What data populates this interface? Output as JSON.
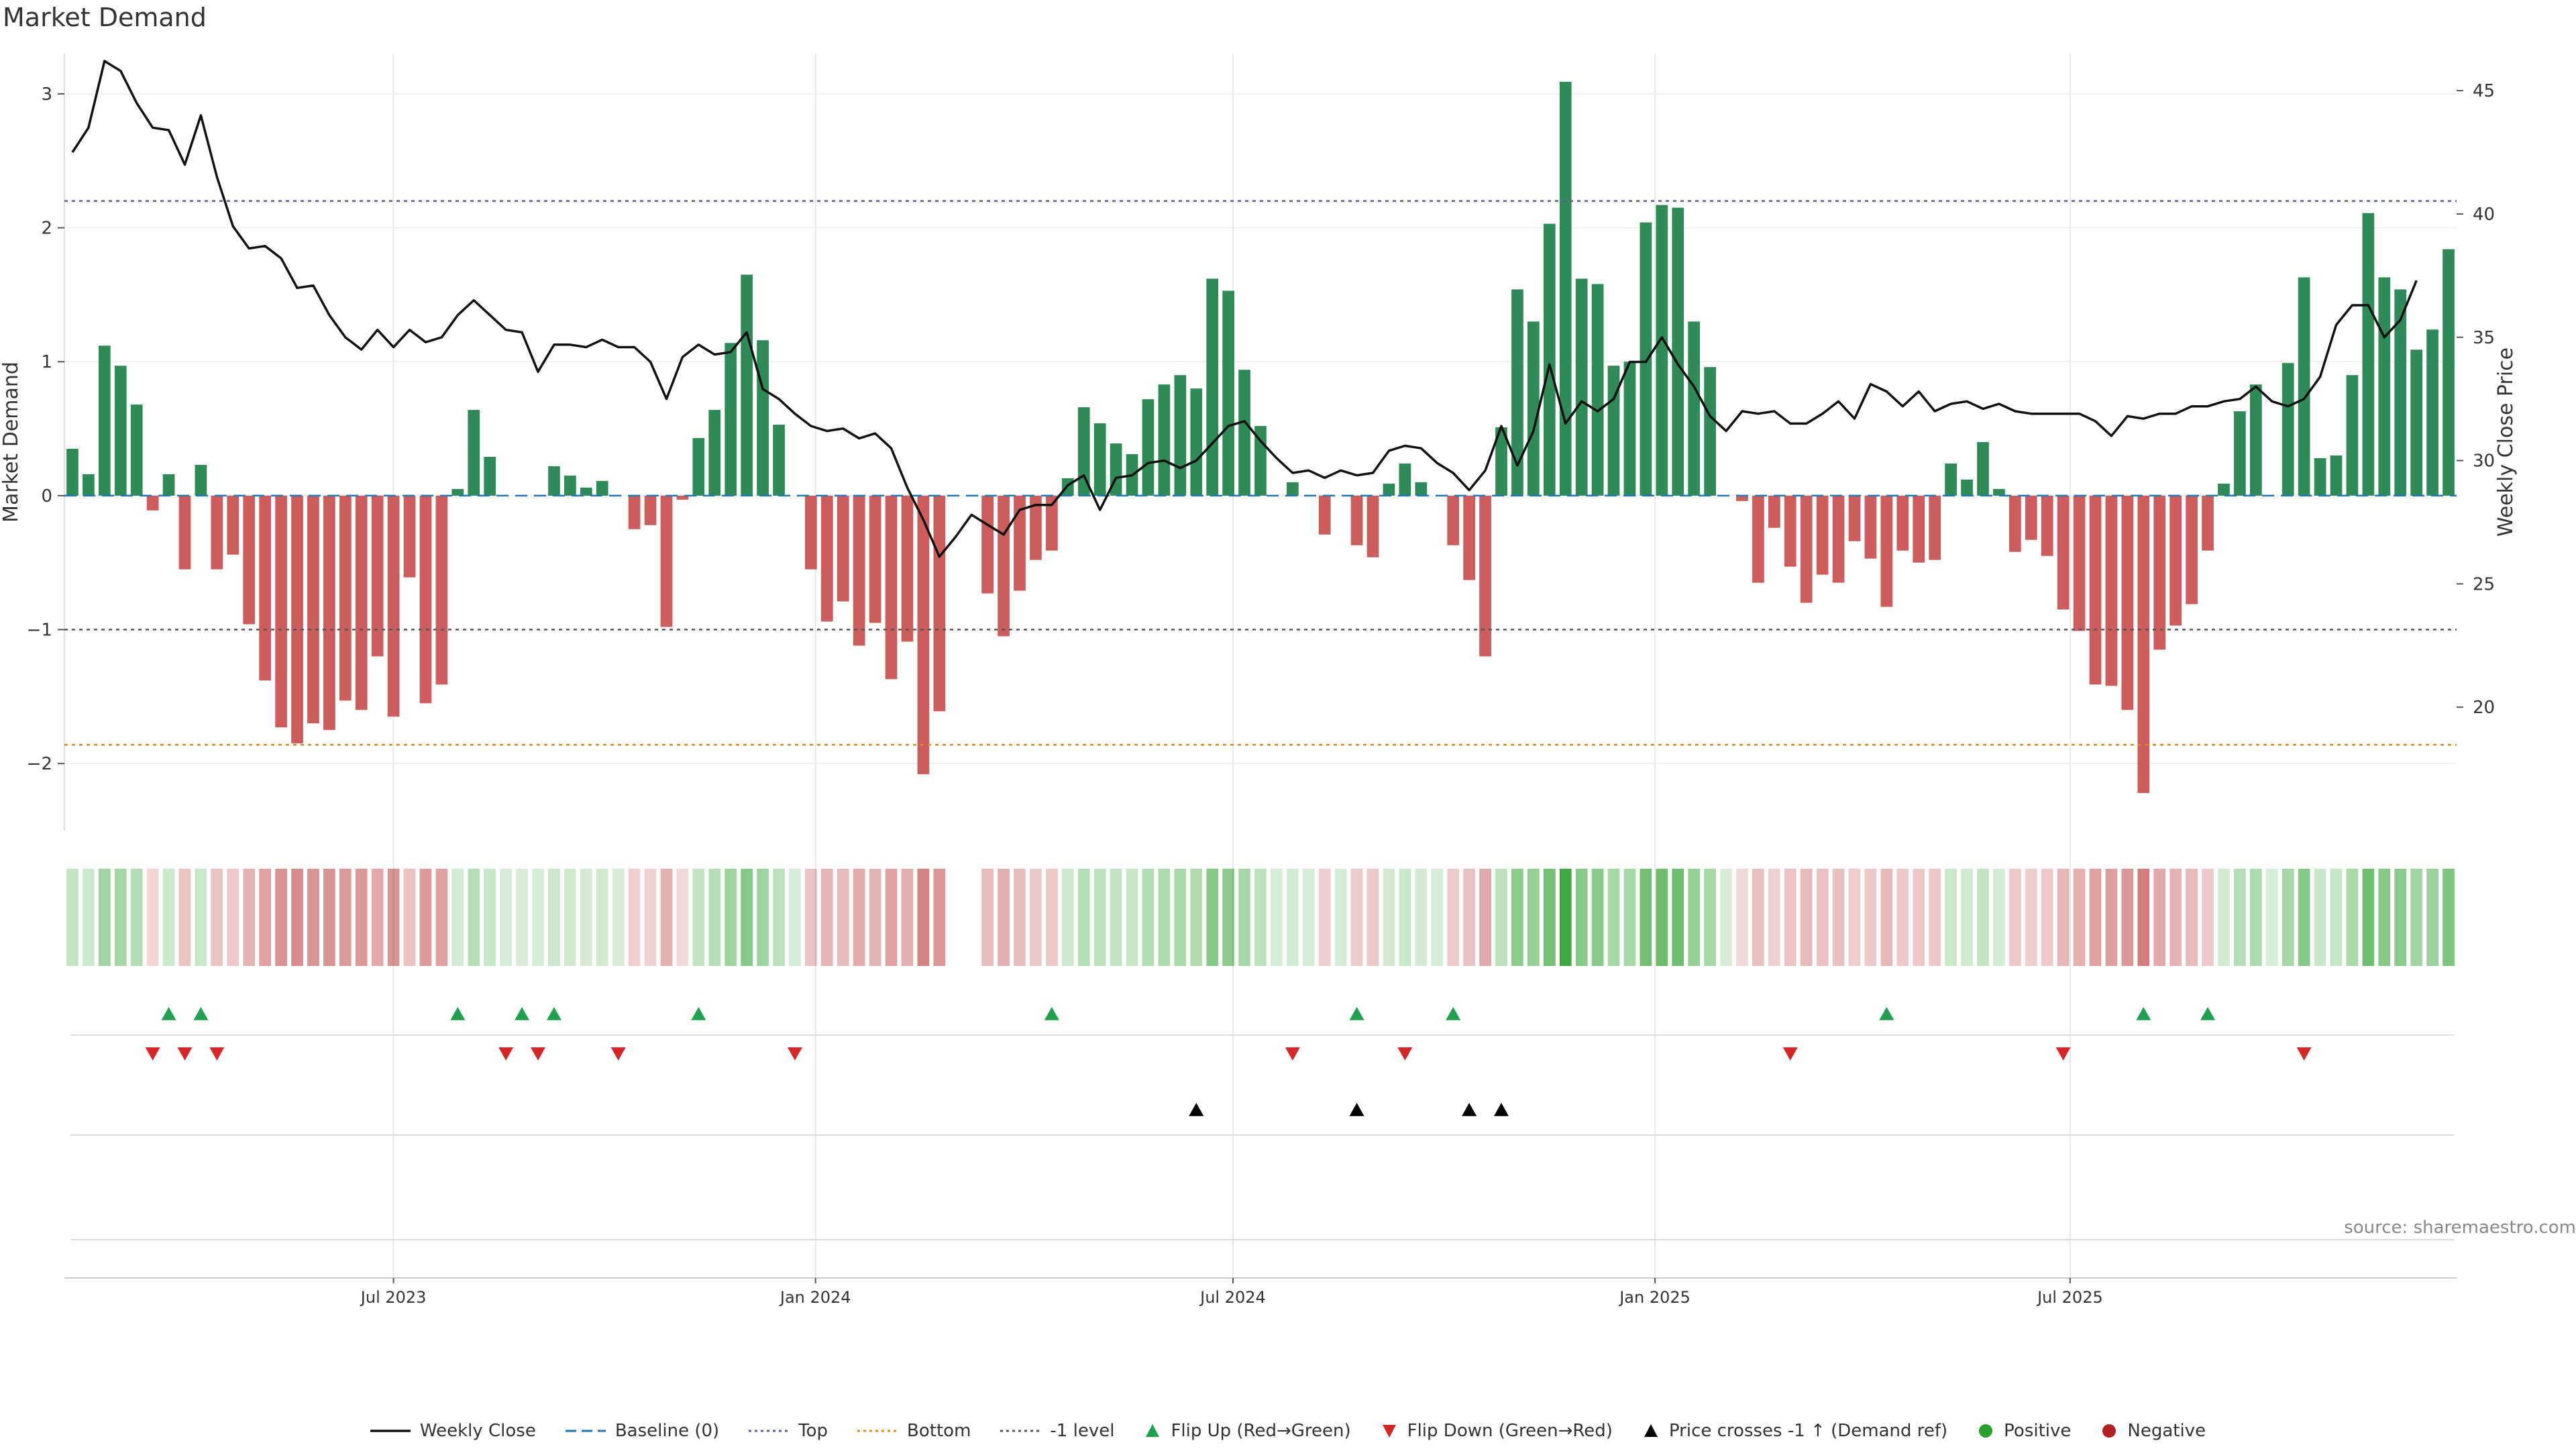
{
  "title": "Market Demand",
  "source": "source: sharemaestro.com",
  "chart_data": {
    "type": "bar",
    "title": "Market Demand",
    "ylabel": "Market Demand",
    "y2label": "Weekly Close Price",
    "ylim": [
      -2.5,
      3.3
    ],
    "y2lim": [
      15,
      46.5
    ],
    "yticks": [
      -2,
      -1,
      0,
      1,
      2,
      3
    ],
    "y2ticks": [
      20,
      25,
      30,
      35,
      40,
      45
    ],
    "reference_lines": {
      "top": 2.2,
      "bottom": -1.86,
      "minus_one": -1,
      "baseline": 0
    },
    "x_start": "2023-02-11",
    "week_days": 7,
    "xticks": [
      {
        "date": "2023-07-01",
        "label": "Jul 2023"
      },
      {
        "date": "2024-01-01",
        "label": "Jan 2024"
      },
      {
        "date": "2024-07-01",
        "label": "Jul 2024"
      },
      {
        "date": "2025-01-01",
        "label": "Jan 2025"
      },
      {
        "date": "2025-07-01",
        "label": "Jul 2025"
      }
    ],
    "demand": [
      0.35,
      0.16,
      1.12,
      0.97,
      0.68,
      -0.11,
      0.16,
      -0.55,
      0.23,
      -0.55,
      -0.44,
      -0.96,
      -1.38,
      -1.73,
      -1.85,
      -1.7,
      -1.75,
      -1.53,
      -1.6,
      -1.2,
      -1.65,
      -0.61,
      -1.55,
      -1.41,
      0.05,
      0.64,
      0.29,
      0,
      0,
      0,
      0.22,
      0.15,
      0.06,
      0.11,
      0,
      -0.25,
      -0.22,
      -0.98,
      -0.03,
      0.43,
      0.64,
      1.14,
      1.65,
      1.16,
      0.53,
      0,
      -0.55,
      -0.94,
      -0.79,
      -1.12,
      -0.95,
      -1.37,
      -1.09,
      -2.08,
      -1.61,
      0,
      0,
      -0.73,
      -1.05,
      -0.71,
      -0.48,
      -0.41,
      0.13,
      0.66,
      0.54,
      0.39,
      0.31,
      0.72,
      0.83,
      0.9,
      0.8,
      1.62,
      1.53,
      0.94,
      0.52,
      0,
      0.1,
      0,
      -0.29,
      0,
      -0.37,
      -0.46,
      0.09,
      0.24,
      0.1,
      0,
      -0.37,
      -0.63,
      -1.2,
      0.51,
      1.54,
      1.3,
      2.03,
      3.09,
      1.62,
      1.58,
      0.97,
      1.0,
      2.04,
      2.17,
      2.15,
      1.3,
      0.96,
      0,
      -0.04,
      -0.65,
      -0.24,
      -0.53,
      -0.8,
      -0.59,
      -0.65,
      -0.34,
      -0.47,
      -0.83,
      -0.41,
      -0.5,
      -0.48,
      0.24,
      0.12,
      0.4,
      0.05,
      -0.42,
      -0.33,
      -0.45,
      -0.85,
      -1.01,
      -1.41,
      -1.42,
      -1.6,
      -2.22,
      -1.15,
      -0.97,
      -0.81,
      -0.41,
      0.09,
      0.63,
      0.83,
      0,
      0.99,
      1.63,
      0.28,
      0.3,
      0.9,
      2.11,
      1.63,
      1.54,
      1.09,
      1.24,
      1.84
    ],
    "close": [
      42.5,
      43.5,
      46.2,
      45.8,
      44.5,
      43.5,
      43.4,
      42.0,
      44.0,
      41.5,
      39.5,
      38.6,
      38.7,
      38.2,
      37.0,
      37.1,
      35.9,
      35.0,
      34.5,
      35.3,
      34.6,
      35.3,
      34.8,
      35.0,
      35.9,
      36.5,
      35.9,
      35.3,
      35.2,
      33.6,
      34.7,
      34.7,
      34.6,
      34.9,
      34.6,
      34.6,
      34.0,
      32.5,
      34.2,
      34.7,
      34.3,
      34.4,
      35.2,
      32.9,
      32.5,
      31.9,
      31.4,
      31.2,
      31.3,
      30.9,
      31.1,
      30.5,
      28.9,
      27.6,
      26.1,
      26.9,
      27.8,
      27.4,
      27.0,
      28.0,
      28.2,
      28.2,
      29.0,
      29.4,
      28.0,
      29.3,
      29.4,
      29.9,
      30.0,
      29.7,
      30.0,
      30.7,
      31.4,
      31.6,
      30.8,
      30.1,
      29.5,
      29.6,
      29.3,
      29.6,
      29.4,
      29.5,
      30.4,
      30.6,
      30.5,
      29.9,
      29.5,
      28.8,
      29.6,
      31.4,
      29.8,
      31.2,
      33.9,
      31.5,
      32.4,
      32.0,
      32.5,
      34.0,
      34.0,
      35.0,
      33.9,
      33.0,
      31.8,
      31.2,
      32.0,
      31.9,
      32.0,
      31.5,
      31.5,
      31.9,
      32.4,
      31.7,
      33.1,
      32.8,
      32.2,
      32.8,
      32.0,
      32.3,
      32.4,
      32.1,
      32.3,
      32.0,
      31.9,
      31.9,
      31.9,
      31.9,
      31.6,
      31.0,
      31.8,
      31.7,
      31.9,
      31.9,
      32.2,
      32.2,
      32.4,
      32.5,
      33.0,
      32.4,
      32.2,
      32.5,
      33.4,
      35.5,
      36.3,
      36.3,
      35.0,
      35.7,
      37.3
    ],
    "flip_up_weeks": [
      6,
      8,
      24,
      28,
      30,
      39,
      61,
      80,
      86,
      113,
      129,
      133
    ],
    "flip_down_weeks": [
      5,
      7,
      9,
      27,
      29,
      34,
      45,
      76,
      83,
      107,
      124,
      139
    ],
    "price_cross_weeks": [
      70,
      80,
      87,
      89
    ],
    "legend": [
      {
        "label": "Weekly Close",
        "style": "line",
        "color": "#111111"
      },
      {
        "label": "Baseline (0)",
        "style": "dash",
        "color": "#1f77b4"
      },
      {
        "label": "Top",
        "style": "dot",
        "color": "#5b5b9e"
      },
      {
        "label": "Bottom",
        "style": "dot",
        "color": "#e08a1e"
      },
      {
        "label": "-1 level",
        "style": "dot",
        "color": "#555555"
      },
      {
        "label": "Flip Up (Red→Green)",
        "style": "tri-up",
        "color": "#21a050"
      },
      {
        "label": "Flip Down (Green→Red)",
        "style": "tri-down",
        "color": "#d62728"
      },
      {
        "label": "Price crosses -1 ↑ (Demand ref)",
        "style": "tri-up",
        "color": "#000000"
      },
      {
        "label": "Positive",
        "style": "circle",
        "color": "#2ca02c"
      },
      {
        "label": "Negative",
        "style": "circle",
        "color": "#b22222"
      }
    ],
    "colors": {
      "positive_bar": "#2e8b57",
      "negative_bar": "#cd5c5c",
      "heat_positive": "#2ca02c",
      "heat_negative": "#b22222",
      "grid": "#e8e8e8"
    }
  }
}
